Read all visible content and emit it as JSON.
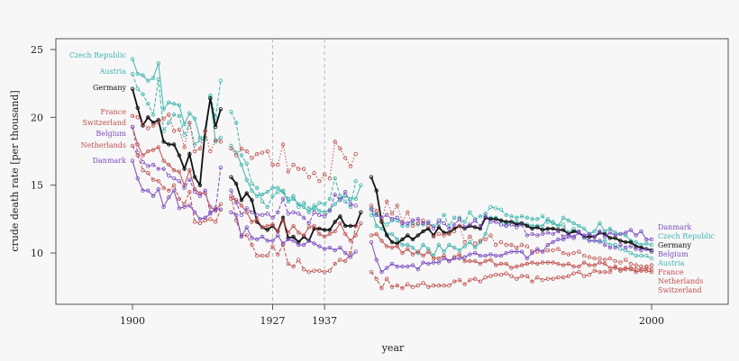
{
  "chart_data": {
    "type": "line",
    "title": "",
    "xlabel": "year",
    "ylabel": "crude death rate [per thousand]",
    "xlim": [
      1885,
      2015
    ],
    "ylim": [
      7,
      26
    ],
    "x_ticks": [
      1900,
      1927,
      1937,
      2000
    ],
    "y_ticks": [
      10,
      15,
      20,
      25
    ],
    "reference_lines_x": [
      1927,
      1937
    ],
    "grid": false,
    "legend": "direct labels at left and right ends of the lines",
    "colors": {
      "teal": "#3db5ad",
      "red": "#c0504d",
      "purple": "#7b4cc2",
      "black": "#111111"
    },
    "series": [
      {
        "name": "Czech Republic",
        "color": "#3db5ad",
        "style": "solid",
        "segments": [
          {
            "start": 1900,
            "values": [
              24.3,
              23.2,
              23.1,
              22.7,
              22.9,
              24.0,
              20.6,
              21.1,
              21.0,
              20.9,
              19.5,
              20.3,
              19.9,
              18.5,
              18.5,
              21.5,
              18.2,
              18.5
            ]
          },
          {
            "start": 1919,
            "values": [
              17.9,
              17.4,
              16.5,
              15.4,
              14.6,
              14.2,
              14.3,
              14.5,
              14.8,
              14.8,
              14.5,
              13.8,
              14.0,
              13.6,
              13.4,
              13.0,
              13.5,
              13.1,
              13.0,
              13.2,
              13.6,
              14.0,
              14.2,
              14.0,
              14.0,
              15.0
            ]
          },
          {
            "start": 1946,
            "values": [
              13.3,
              12.0,
              11.8,
              11.4,
              11.4,
              11.0,
              10.6,
              10.6,
              10.4,
              10.0,
              10.6,
              10.3,
              9.8,
              10.6,
              10.1,
              10.6,
              10.4,
              10.2,
              10.5,
              10.8,
              10.4,
              10.8,
              11.4,
              12.6,
              12.6,
              12.4,
              12.1,
              12.3,
              12.3,
              12.2,
              12.1,
              12.0,
              12.0,
              12.0,
              12.5,
              12.2,
              12.0,
              12.6,
              12.4,
              12.2,
              12.0,
              11.8,
              11.4,
              11.6,
              12.2,
              11.6,
              11.8,
              11.5,
              11.4,
              11.3,
              10.9,
              10.8,
              10.6,
              10.7,
              10.6
            ]
          }
        ]
      },
      {
        "name": "Austria",
        "color": "#3db5ad",
        "style": "dashed",
        "segments": [
          {
            "start": 1900,
            "values": [
              23.2,
              22.1,
              21.7,
              21.0,
              20.2,
              22.8,
              19.0,
              19.6,
              20.2,
              20.1,
              18.7,
              19.6,
              18.0,
              18.3,
              18.4,
              21.6,
              20.0,
              22.7
            ]
          },
          {
            "start": 1919,
            "values": [
              20.4,
              19.6,
              17.2,
              16.6,
              15.1,
              14.8,
              13.8,
              13.4,
              14.2,
              14.5,
              14.6,
              14.0,
              14.2,
              13.4,
              13.7,
              13.3,
              13.2,
              13.7,
              13.6,
              14.0,
              15.5,
              14.2,
              13.8,
              13.4,
              15.3
            ]
          },
          {
            "start": 1946,
            "values": [
              12.8,
              12.9,
              12.3,
              12.1,
              12.4,
              12.4,
              12.0,
              12.0,
              12.2,
              12.1,
              12.1,
              12.2,
              12.0,
              12.2,
              12.8,
              12.0,
              12.6,
              12.6,
              12.3,
              13.0,
              12.5,
              12.7,
              12.9,
              13.4,
              13.3,
              13.2,
              12.8,
              12.7,
              12.6,
              12.7,
              12.6,
              12.5,
              12.5,
              12.7,
              12.3,
              12.3,
              12.0,
              12.1,
              11.5,
              11.8,
              11.5,
              11.1,
              10.9,
              10.9,
              10.8,
              10.9,
              10.6,
              10.6,
              10.3,
              10.2,
              10.0,
              9.8,
              9.8,
              9.8,
              9.6
            ]
          }
        ]
      },
      {
        "name": "Germany",
        "color": "#111111",
        "style": "solid",
        "segments": [
          {
            "start": 1900,
            "values": [
              22.1,
              20.7,
              19.4,
              20.0,
              19.6,
              19.8,
              18.2,
              18.0,
              18.0,
              17.2,
              16.2,
              17.3,
              15.6,
              15.0,
              19.0,
              21.4,
              19.3,
              20.6
            ]
          },
          {
            "start": 1919,
            "values": [
              15.6,
              15.1,
              13.9,
              14.4,
              13.9,
              12.3,
              11.9,
              11.7,
              12.0,
              11.6,
              12.6,
              11.1,
              11.2,
              10.8,
              11.2,
              10.9,
              11.8,
              11.8,
              11.7,
              11.7,
              12.3,
              12.7,
              12.0,
              12.0,
              12.0,
              13.0
            ]
          },
          {
            "start": 1946,
            "values": [
              15.6,
              14.6,
              12.3,
              11.3,
              10.8,
              10.7,
              11.0,
              11.3,
              11.0,
              11.3,
              11.6,
              11.8,
              11.3,
              11.9,
              11.5,
              11.5,
              11.8,
              12.0,
              11.8,
              12.0,
              11.9,
              11.8,
              12.6,
              12.5,
              12.5,
              12.4,
              12.3,
              12.3,
              12.1,
              12.2,
              12.0,
              11.8,
              11.9,
              11.7,
              11.8,
              11.8,
              11.7,
              11.7,
              11.4,
              11.6,
              11.5,
              11.2,
              11.2,
              11.2,
              11.5,
              11.4,
              11.1,
              11.1,
              10.9,
              10.8,
              10.8,
              10.5,
              10.4,
              10.3,
              10.2
            ]
          }
        ]
      },
      {
        "name": "France",
        "color": "#c0504d",
        "style": "dotted",
        "segments": [
          {
            "start": 1900,
            "values": [
              20.1,
              20.0,
              19.5,
              19.2,
              19.4,
              19.6,
              19.9,
              20.2,
              19.0,
              19.1,
              17.8,
              19.6,
              17.5,
              17.7,
              19.0,
              17.5,
              18.3,
              18.2
            ]
          },
          {
            "start": 1919,
            "values": [
              17.7,
              17.2,
              17.7,
              17.5,
              17.0,
              17.3,
              17.4,
              17.5,
              16.5,
              16.5,
              18.0,
              16.0,
              16.5,
              16.2,
              16.2,
              15.6,
              15.9,
              15.3,
              15.8,
              15.5,
              18.2,
              17.7,
              17.0,
              16.4,
              17.3
            ]
          },
          {
            "start": 1946,
            "values": [
              13.5,
              13.1,
              12.4,
              13.8,
              12.9,
              13.5,
              12.3,
              13.0,
              12.0,
              12.2,
              12.4,
              12.0,
              11.2,
              11.4,
              11.3,
              11.4,
              11.6,
              12.0,
              10.8,
              11.2,
              10.7,
              10.9,
              11.0,
              11.3,
              10.6,
              10.8,
              10.6,
              10.6,
              10.4,
              10.6,
              10.5,
              10.1,
              10.1,
              10.1,
              10.2,
              10.2,
              10.3,
              10.0,
              9.9,
              10.0,
              10.1,
              9.8,
              9.7,
              9.6,
              9.6,
              9.5,
              9.6,
              9.4,
              9.3,
              9.5,
              9.2,
              9.1,
              9.0,
              9.0,
              9.1
            ]
          }
        ]
      },
      {
        "name": "Switzerland",
        "color": "#c0504d",
        "style": "solid",
        "segments": [
          {
            "start": 1900,
            "values": [
              19.3,
              18.0,
              17.2,
              17.5,
              17.6,
              17.8,
              16.8,
              16.5,
              16.1,
              16.0,
              15.0,
              16.1,
              14.7,
              14.4,
              14.4,
              13.4,
              13.1,
              13.6
            ]
          },
          {
            "start": 1919,
            "values": [
              14.0,
              13.9,
              13.5,
              13.0,
              12.3,
              12.5,
              11.9,
              12.0,
              12.1,
              11.6,
              12.4,
              11.5,
              12.0,
              11.5,
              11.3,
              11.9,
              12.0,
              11.4,
              11.2,
              11.4,
              11.6,
              12.2,
              11.4,
              10.9,
              11.3,
              12.2
            ]
          },
          {
            "start": 1946,
            "values": [
              11.3,
              11.4,
              10.9,
              10.5,
              10.4,
              10.5,
              10.0,
              10.3,
              9.9,
              10.1,
              9.8,
              10.1,
              9.6,
              9.6,
              9.8,
              9.4,
              9.7,
              9.9,
              9.4,
              9.4,
              9.4,
              9.2,
              9.4,
              9.5,
              9.1,
              9.2,
              9.2,
              8.9,
              9.0,
              9.1,
              9.2,
              9.3,
              9.2,
              9.3,
              9.3,
              9.3,
              9.2,
              9.1,
              9.2,
              9.0,
              9.0,
              9.3,
              9.1,
              9.1,
              9.3,
              9.2,
              8.9,
              8.9,
              8.8,
              8.9,
              8.8,
              8.6,
              8.7,
              8.7,
              8.6
            ]
          }
        ]
      },
      {
        "name": "Belgium",
        "color": "#7b4cc2",
        "style": "dashed",
        "segments": [
          {
            "start": 1900,
            "values": [
              19.3,
              17.4,
              16.7,
              16.4,
              16.5,
              16.2,
              16.2,
              15.7,
              15.5,
              15.3,
              14.8,
              15.4,
              14.5,
              14.2,
              14.6,
              13.0,
              13.2,
              16.3
            ]
          },
          {
            "start": 1919,
            "values": [
              14.6,
              13.7,
              12.8,
              13.3,
              13.0,
              12.8,
              12.8,
              12.9,
              12.6,
              13.0,
              14.0,
              12.9,
              13.0,
              12.9,
              12.6,
              12.2,
              13.0,
              12.8,
              12.7,
              13.1,
              14.3,
              13.9,
              14.5,
              13.6,
              13.5
            ]
          },
          {
            "start": 1946,
            "values": [
              13.2,
              12.8,
              12.6,
              12.8,
              12.5,
              12.6,
              12.2,
              12.2,
              12.4,
              12.5,
              12.2,
              12.3,
              11.8,
              12.4,
              12.2,
              11.8,
              12.1,
              12.5,
              11.9,
              12.1,
              12.4,
              12.0,
              12.7,
              12.3,
              12.3,
              12.1,
              12.0,
              12.1,
              11.9,
              12.1,
              11.3,
              11.4,
              11.3,
              11.4,
              11.5,
              11.4,
              11.6,
              11.2,
              11.4,
              11.1,
              11.6,
              11.2,
              10.9,
              10.9,
              10.9,
              10.6,
              10.4,
              10.4,
              10.6,
              10.4,
              10.5,
              10.3,
              10.2,
              10.3,
              10.1
            ]
          }
        ]
      },
      {
        "name": "Netherlands",
        "color": "#c0504d",
        "style": "dashed",
        "segments": [
          {
            "start": 1900,
            "values": [
              17.9,
              17.2,
              16.1,
              15.9,
              15.4,
              15.3,
              14.8,
              14.6,
              15.0,
              14.0,
              13.6,
              14.5,
              12.3,
              12.2,
              12.4,
              12.5,
              12.3,
              13.2
            ]
          },
          {
            "start": 1919,
            "values": [
              14.2,
              12.4,
              11.3,
              11.3,
              10.6,
              9.8,
              9.8,
              9.8,
              10.5,
              9.9,
              10.6,
              9.2,
              9.0,
              9.5,
              8.8,
              8.6,
              8.7,
              8.7,
              8.6,
              8.7,
              9.2,
              9.5,
              9.4,
              10.0,
              12.0
            ]
          },
          {
            "start": 1946,
            "values": [
              8.6,
              8.1,
              7.4,
              8.1,
              7.5,
              7.6,
              7.4,
              7.7,
              7.5,
              7.6,
              7.8,
              7.5,
              7.6,
              7.6,
              7.6,
              7.6,
              7.9,
              8.0,
              7.7,
              8.0,
              8.1,
              7.9,
              8.2,
              8.3,
              8.4,
              8.4,
              8.5,
              8.3,
              8.1,
              8.3,
              8.3,
              7.9,
              8.2,
              8.0,
              8.1,
              8.1,
              8.2,
              8.2,
              8.3,
              8.5,
              8.6,
              8.3,
              8.4,
              8.7,
              8.6,
              8.6,
              8.6,
              9.0,
              8.7,
              8.8,
              8.9,
              8.8,
              8.8,
              8.9,
              8.8
            ]
          }
        ]
      },
      {
        "name": "Danmark",
        "color": "#7b4cc2",
        "style": "solid",
        "segments": [
          {
            "start": 1900,
            "values": [
              16.8,
              15.5,
              14.6,
              14.6,
              14.2,
              14.7,
              13.4,
              14.1,
              14.6,
              13.3,
              13.4,
              13.5,
              13.0,
              12.5,
              12.6,
              12.9,
              13.3,
              13.2
            ]
          },
          {
            "start": 1919,
            "values": [
              13.0,
              12.8,
              11.2,
              11.9,
              11.1,
              11.0,
              11.2,
              10.9,
              10.9,
              11.3,
              10.7,
              11.0,
              10.9,
              10.6,
              10.6,
              10.9,
              10.7,
              10.5,
              10.3,
              10.4,
              10.2,
              10.4,
              10.0,
              9.7,
              10.1
            ]
          },
          {
            "start": 1946,
            "values": [
              10.8,
              9.5,
              8.6,
              8.9,
              9.2,
              9.0,
              9.0,
              9.0,
              9.1,
              8.8,
              9.3,
              9.2,
              9.3,
              9.3,
              9.6,
              9.4,
              9.6,
              9.6,
              9.7,
              9.9,
              10.0,
              9.8,
              9.8,
              9.9,
              9.8,
              9.8,
              10.0,
              10.1,
              10.1,
              10.1,
              9.6,
              10.0,
              10.3,
              10.1,
              10.6,
              10.8,
              11.0,
              11.0,
              11.2,
              11.2,
              11.5,
              11.3,
              11.4,
              11.2,
              11.6,
              11.2,
              11.5,
              11.3,
              11.4,
              11.5,
              11.7,
              11.3,
              11.6,
              11.0,
              11.0
            ]
          }
        ]
      }
    ],
    "left_labels": [
      "Czech Republic",
      "Austria",
      "Germany",
      "France",
      "Switzerland",
      "Belgium",
      "Netherlands",
      "Danmark"
    ],
    "right_labels": [
      "Danmark",
      "Czech Republic",
      "Germany",
      "Belgium",
      "Austria",
      "France",
      "Netherlands",
      "Switzerland"
    ]
  }
}
